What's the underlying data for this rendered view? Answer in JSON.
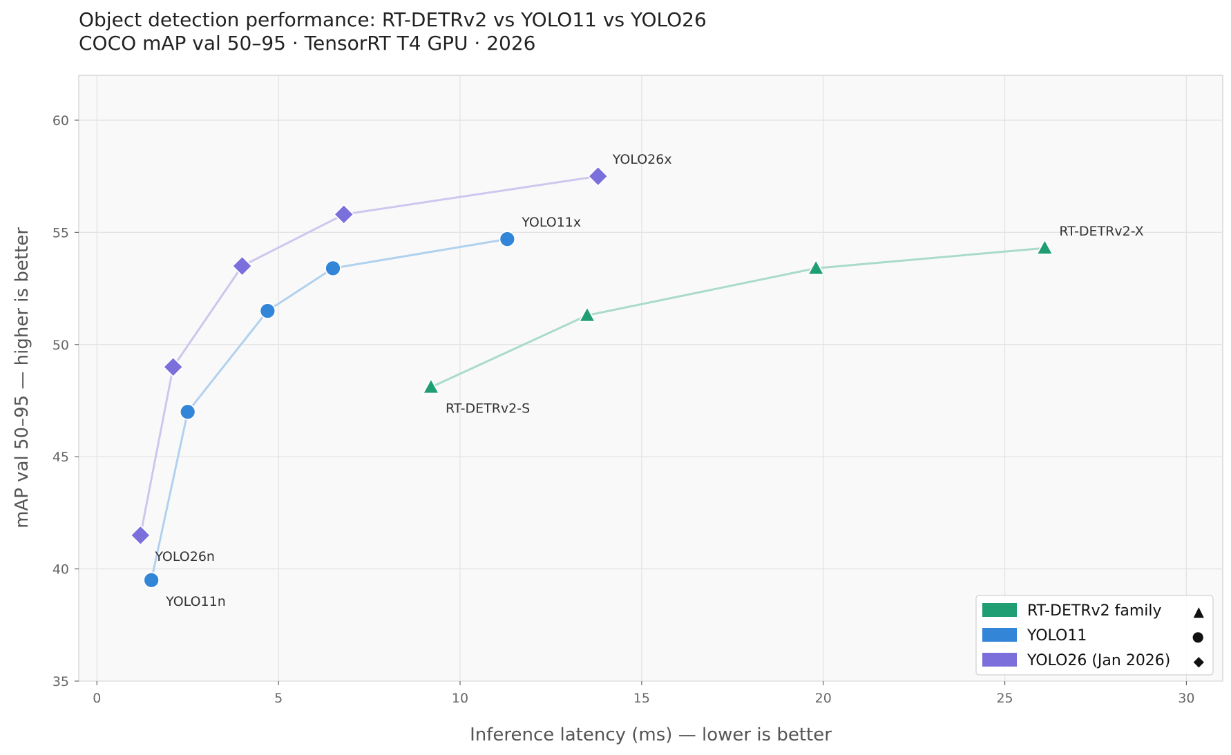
{
  "chart_data": {
    "type": "scatter",
    "title": "Object detection performance: RT-DETRv2 vs YOLO11 vs YOLO26",
    "subtitle": "COCO mAP val 50–95 · TensorRT T4 GPU · 2026",
    "xlabel": "Inference latency (ms) — lower is better",
    "ylabel": "mAP val 50–95 — higher is better",
    "xlim": [
      -0.5,
      31
    ],
    "ylim": [
      35,
      62
    ],
    "xticks": [
      0,
      5,
      10,
      15,
      20,
      25,
      30
    ],
    "yticks": [
      35,
      40,
      45,
      50,
      55,
      60
    ],
    "grid": true,
    "legend_position": "bottom-right",
    "series": [
      {
        "name": "RT-DETRv2 family",
        "legend_glyph": "▲",
        "marker": "triangle",
        "color": "#1f9e74",
        "line_color": "#a9dbc9",
        "x": [
          9.2,
          13.5,
          19.8,
          26.1
        ],
        "y": [
          48.1,
          51.3,
          53.4,
          54.3
        ],
        "labels": [
          {
            "index": 0,
            "text": "RT-DETRv2-S",
            "position": "below-right"
          },
          {
            "index": 3,
            "text": "RT-DETRv2-X",
            "position": "above-right"
          }
        ]
      },
      {
        "name": "YOLO11",
        "legend_glyph": "●",
        "marker": "circle",
        "color": "#3385d8",
        "line_color": "#b1d1ef",
        "x": [
          1.5,
          2.5,
          4.7,
          6.5,
          11.3
        ],
        "y": [
          39.5,
          47.0,
          51.5,
          53.4,
          54.7
        ],
        "labels": [
          {
            "index": 0,
            "text": "YOLO11n",
            "position": "below-right"
          },
          {
            "index": 4,
            "text": "YOLO11x",
            "position": "above-right"
          }
        ]
      },
      {
        "name": "YOLO26 (Jan 2026)",
        "legend_glyph": "◆",
        "marker": "diamond",
        "color": "#7b6fdc",
        "line_color": "#cdc7ef",
        "x": [
          1.2,
          2.1,
          4.0,
          6.8,
          13.8
        ],
        "y": [
          41.5,
          49.0,
          53.5,
          55.8,
          57.5
        ],
        "labels": [
          {
            "index": 0,
            "text": "YOLO26n",
            "position": "below-right"
          },
          {
            "index": 4,
            "text": "YOLO26x",
            "position": "above-right"
          }
        ]
      }
    ]
  }
}
